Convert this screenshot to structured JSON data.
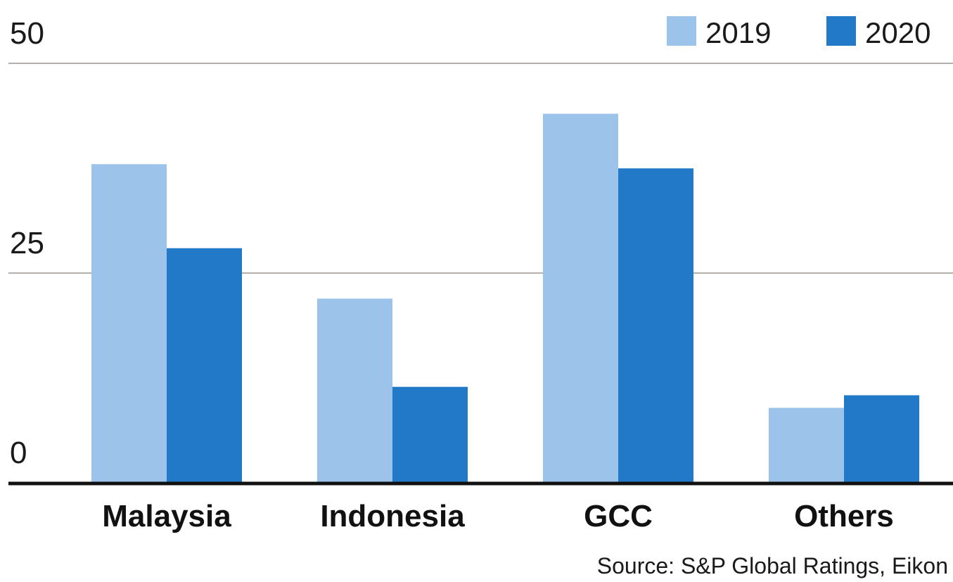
{
  "chart_data": {
    "type": "bar",
    "title": "",
    "xlabel": "",
    "ylabel": "",
    "categories": [
      "Malaysia",
      "Indonesia",
      "GCC",
      "Others"
    ],
    "series": [
      {
        "name": "2019",
        "color": "#9cc4ea",
        "values": [
          38,
          22,
          44,
          9
        ]
      },
      {
        "name": "2020",
        "color": "#2279c7",
        "values": [
          28,
          11.5,
          37.5,
          10.5
        ]
      }
    ],
    "ylim": [
      0,
      50
    ],
    "yticks": [
      "0",
      "25",
      "50"
    ],
    "grid": true,
    "legend_position": "top-right"
  },
  "source": "Source: S&P Global Ratings, Eikon"
}
